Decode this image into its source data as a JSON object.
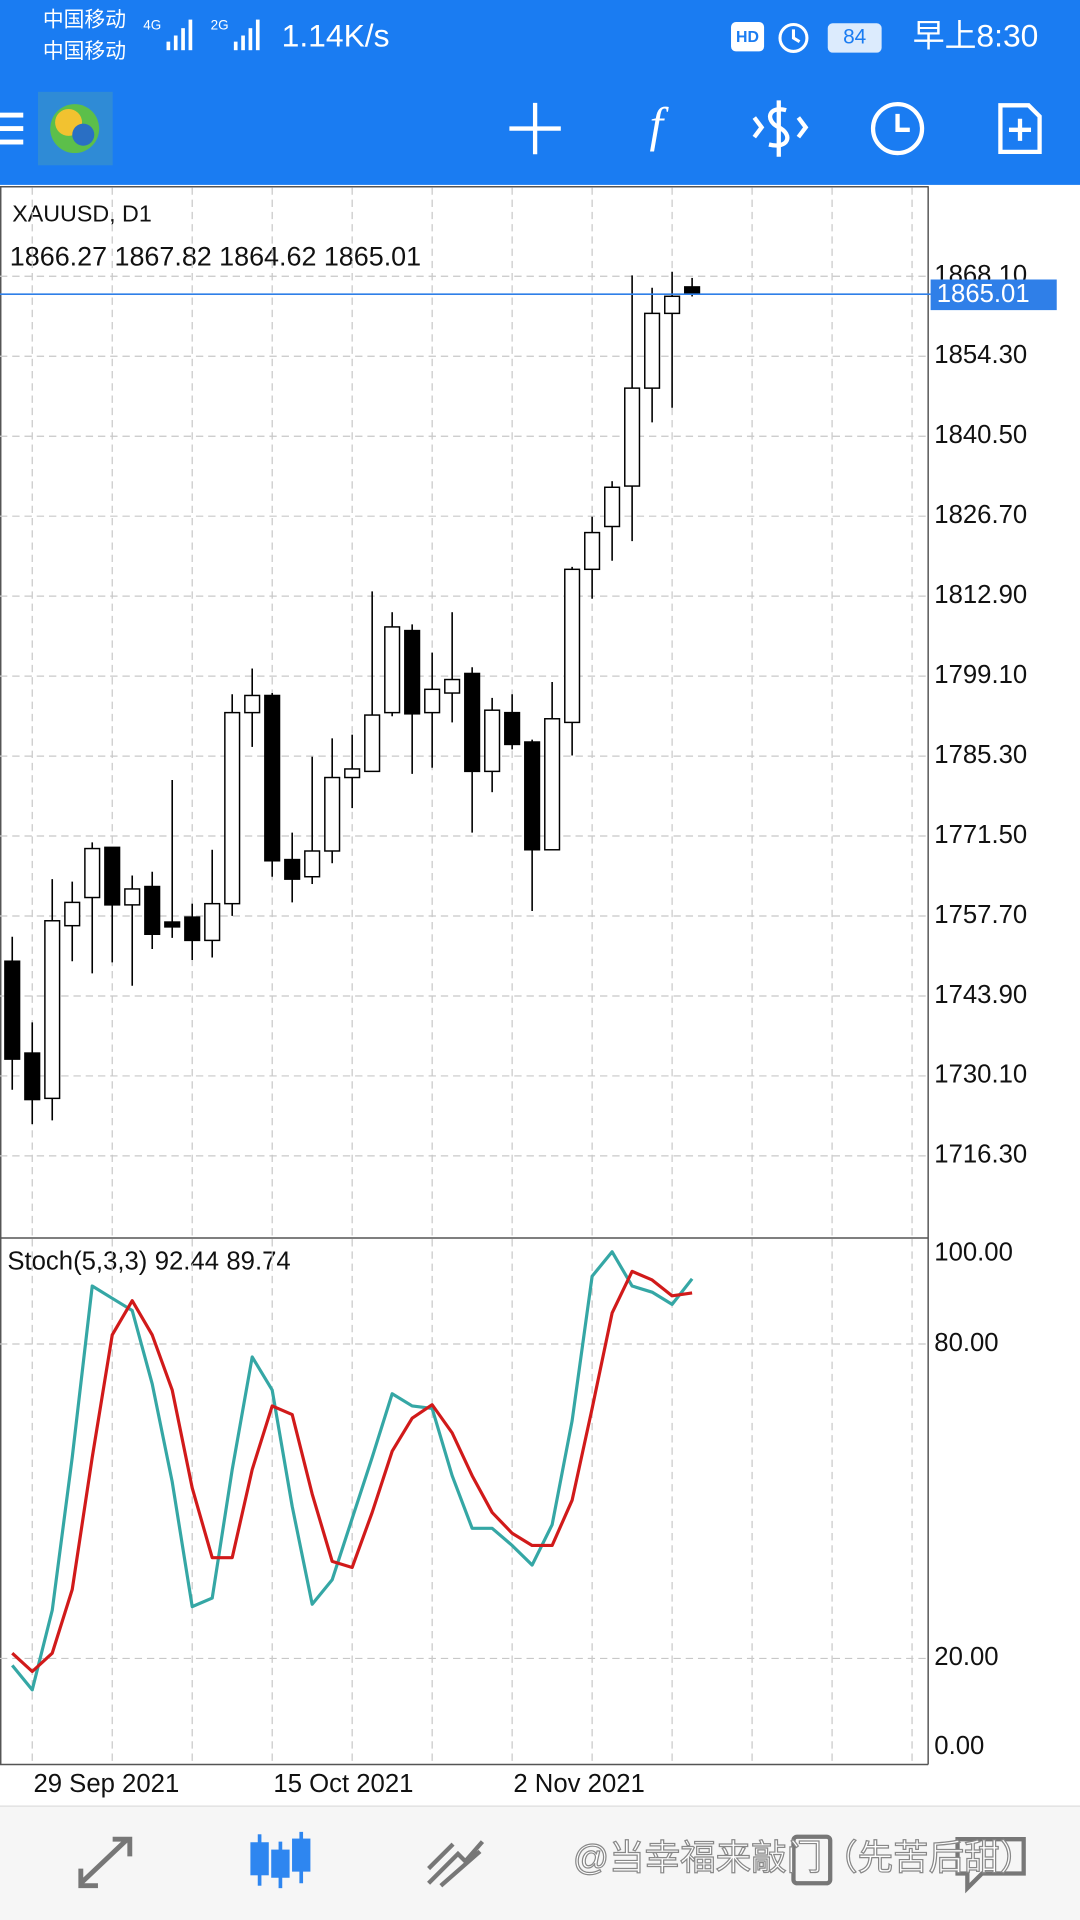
{
  "status_bar": {
    "carrier_1": "中国移动",
    "carrier_2": "中国移动",
    "network_1": "4G",
    "network_2": "2G",
    "speed": "1.14K/s",
    "hd": "HD",
    "battery": "84",
    "time": "早上8:30"
  },
  "watermark": "@当幸福来敲门（先苦后甜）",
  "chart_data": [
    {
      "type": "candlestick",
      "title": "XAUUSD, D1",
      "open": [
        1749.9,
        1734.05,
        1726.23,
        1756.03,
        1760.89,
        1769.55,
        1759.62,
        1762.79,
        1756.66,
        1757.51,
        1753.49,
        1759.83,
        1792.8,
        1795.76,
        1767.44,
        1764.48,
        1768.92,
        1781.6,
        1782.66,
        1792.8,
        1806.96,
        1792.8,
        1796.18,
        1799.56,
        1782.66,
        1792.8,
        1787.73,
        1769.13,
        1791.11,
        1817.53,
        1824.92,
        1831.9,
        1848.8,
        1861.7,
        1866.27
      ],
      "high": [
        1754.13,
        1739.34,
        1764.06,
        1763.64,
        1770.4,
        1769.55,
        1764.69,
        1765.33,
        1781.18,
        1759.83,
        1769.13,
        1795.97,
        1800.41,
        1796.18,
        1772.09,
        1785.19,
        1788.36,
        1789.0,
        1813.72,
        1810.13,
        1808.02,
        1803.16,
        1810.13,
        1800.62,
        1795.34,
        1795.97,
        1788.15,
        1798.08,
        1817.95,
        1826.61,
        1832.74,
        1868.25,
        1866.13,
        1868.88,
        1867.82
      ],
      "low": [
        1727.71,
        1721.79,
        1722.43,
        1749.9,
        1747.79,
        1749.69,
        1745.67,
        1752.01,
        1753.92,
        1750.11,
        1750.54,
        1757.72,
        1786.88,
        1764.48,
        1760.05,
        1763.22,
        1766.81,
        1776.32,
        1782.66,
        1792.17,
        1782.23,
        1783.29,
        1791.11,
        1772.09,
        1779.07,
        1786.46,
        1758.57,
        1769.13,
        1785.4,
        1812.46,
        1819.01,
        1822.39,
        1842.89,
        1845.42,
        1864.62
      ],
      "close": [
        1733.0,
        1726.02,
        1756.88,
        1760.05,
        1769.34,
        1759.62,
        1762.37,
        1754.55,
        1755.82,
        1753.49,
        1759.83,
        1792.8,
        1795.76,
        1767.23,
        1764.06,
        1768.92,
        1781.6,
        1783.08,
        1792.38,
        1807.59,
        1792.59,
        1796.82,
        1798.51,
        1782.66,
        1793.22,
        1787.31,
        1769.13,
        1791.74,
        1817.53,
        1823.87,
        1831.69,
        1848.8,
        1861.7,
        1864.65,
        1865.01
      ],
      "up_color": "#ffffff",
      "down_color": "#000000",
      "line_color": "#000000",
      "price_line_color": "#2f7fe8",
      "ylim": [
        1702.35,
        1883.45
      ],
      "yticks": [
        {
          "value": 1716.3,
          "label": "1716.30"
        },
        {
          "value": 1730.1,
          "label": "1730.10"
        },
        {
          "value": 1743.9,
          "label": "1743.90"
        },
        {
          "value": 1757.7,
          "label": "1757.70"
        },
        {
          "value": 1771.5,
          "label": "1771.50"
        },
        {
          "value": 1785.3,
          "label": "1785.30"
        },
        {
          "value": 1799.1,
          "label": "1799.10"
        },
        {
          "value": 1812.9,
          "label": "1812.90"
        },
        {
          "value": 1826.7,
          "label": "1826.70"
        },
        {
          "value": 1840.5,
          "label": "1840.50"
        },
        {
          "value": 1854.3,
          "label": "1854.30"
        },
        {
          "value": 1868.1,
          "label": "1868.10"
        }
      ],
      "grid": true
    },
    {
      "type": "line",
      "title": "Stoch(5,3,3)",
      "categories": [
        null,
        "29 Sep 2021",
        null,
        null,
        null,
        null,
        null,
        null,
        null,
        null,
        null,
        null,
        null,
        "15 Oct 2021",
        null,
        null,
        null,
        null,
        null,
        null,
        null,
        null,
        null,
        null,
        null,
        "2 Nov 2021",
        null,
        null,
        null,
        null,
        null,
        null,
        null,
        null,
        null
      ],
      "series": [
        {
          "color": "#35a7a5",
          "values": [
            18.68,
            14.01,
            29.19,
            58.37,
            91.06,
            88.72,
            86.39,
            72.38,
            53.7,
            29.89,
            31.52,
            56.04,
            77.52,
            71.21,
            49.03,
            30.35,
            35.02,
            46.7,
            58.37,
            70.51,
            68.18,
            67.71,
            54.87,
            44.83,
            44.83,
            41.56,
            37.82,
            45.53,
            65.37,
            92.93,
            97.6,
            91.06,
            89.89,
            87.56,
            92.44
          ]
        },
        {
          "color": "#d11a1a",
          "values": [
            21.01,
            17.51,
            21.01,
            33.15,
            58.37,
            81.72,
            88.26,
            81.72,
            71.21,
            52.53,
            39.23,
            39.23,
            56.04,
            68.18,
            66.54,
            51.37,
            38.52,
            37.36,
            47.86,
            59.54,
            65.84,
            68.41,
            63.04,
            54.87,
            47.86,
            43.89,
            41.56,
            41.56,
            50.2,
            67.71,
            85.92,
            93.86,
            92.22,
            89.19,
            89.74
          ]
        }
      ],
      "ylim": [
        0,
        100
      ],
      "yticks": [
        {
          "value": 0,
          "label": "0.00"
        },
        {
          "value": 20,
          "label": "20.00"
        },
        {
          "value": 80,
          "label": "80.00"
        },
        {
          "value": 100,
          "label": "100.00"
        }
      ],
      "grid": true
    }
  ]
}
